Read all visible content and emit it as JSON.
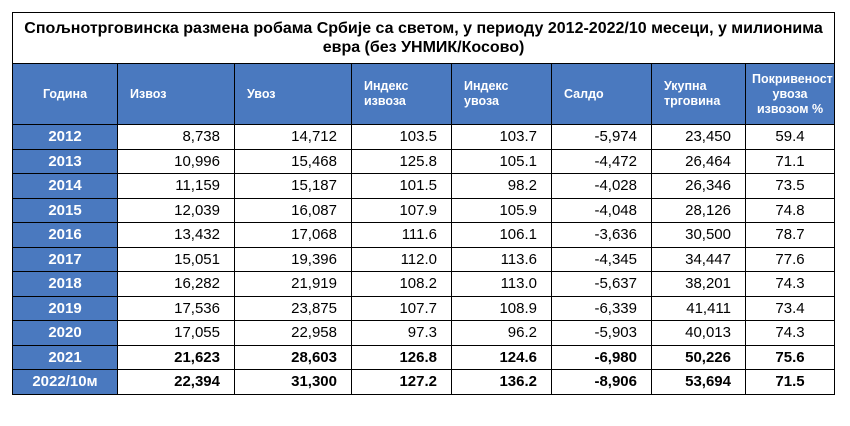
{
  "title": "Спољнотрговинска размена робама Србије са светом, у периоду 2012-2022/10 месеци, у милионима евра (без УНМИК/Косово)",
  "headers": [
    "Година",
    "Извоз",
    "Увоз",
    "Индекс извоза",
    "Индекс увоза",
    "Салдо",
    "Укупна трговина",
    "Покривеност увоза извозом %"
  ],
  "rows": [
    [
      "2012",
      "8,738",
      "14,712",
      "103.5",
      "103.7",
      "-5,974",
      "23,450",
      "59.4"
    ],
    [
      "2013",
      "10,996",
      "15,468",
      "125.8",
      "105.1",
      "-4,472",
      "26,464",
      "71.1"
    ],
    [
      "2014",
      "11,159",
      "15,187",
      "101.5",
      "98.2",
      "-4,028",
      "26,346",
      "73.5"
    ],
    [
      "2015",
      "12,039",
      "16,087",
      "107.9",
      "105.9",
      "-4,048",
      "28,126",
      "74.8"
    ],
    [
      "2016",
      "13,432",
      "17,068",
      "111.6",
      "106.1",
      "-3,636",
      "30,500",
      "78.7"
    ],
    [
      "2017",
      "15,051",
      "19,396",
      "112.0",
      "113.6",
      "-4,345",
      "34,447",
      "77.6"
    ],
    [
      "2018",
      "16,282",
      "21,919",
      "108.2",
      "113.0",
      "-5,637",
      "38,201",
      "74.3"
    ],
    [
      "2019",
      "17,536",
      "23,875",
      "107.7",
      "108.9",
      "-6,339",
      "41,411",
      "73.4"
    ],
    [
      "2020",
      "17,055",
      "22,958",
      "97.3",
      "96.2",
      "-5,903",
      "40,013",
      "74.3"
    ],
    [
      "2021",
      "21,623",
      "28,603",
      "126.8",
      "124.6",
      "-6,980",
      "50,226",
      "75.6"
    ],
    [
      "2022/10м",
      "22,394",
      "31,300",
      "127.2",
      "136.2",
      "-8,906",
      "53,694",
      "71.5"
    ]
  ],
  "bold_rows": [
    9,
    10
  ],
  "colors": {
    "header_bg": "#4a79bf",
    "header_text": "#ffffff",
    "border": "#000000"
  }
}
